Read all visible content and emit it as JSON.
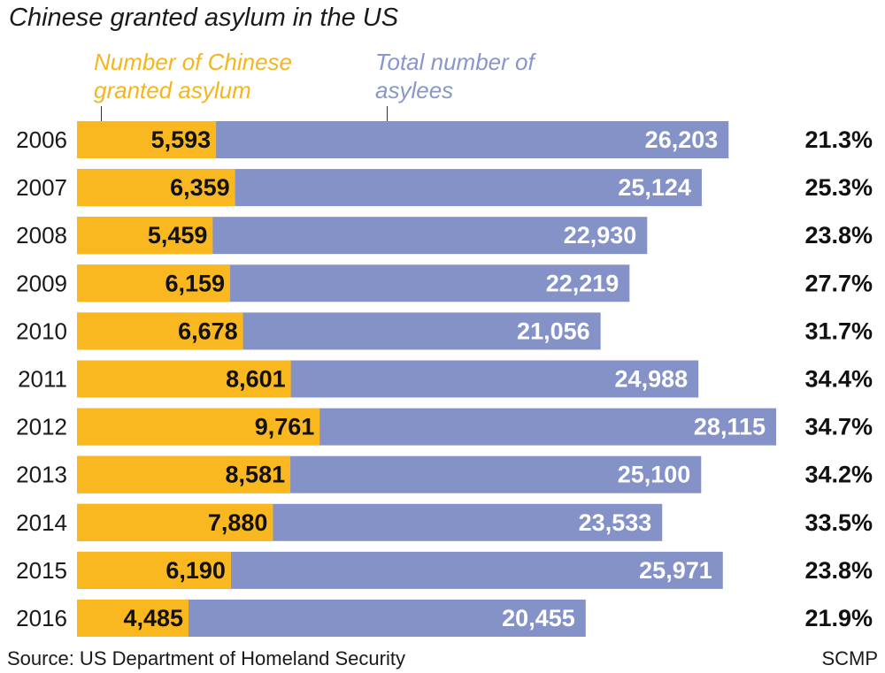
{
  "colors": {
    "chinese": "#f9b81f",
    "total": "#8492c8"
  },
  "chart_data": {
    "type": "bar",
    "title": "Chinese granted asylum in the US",
    "categories": [
      "2006",
      "2007",
      "2008",
      "2009",
      "2010",
      "2011",
      "2012",
      "2013",
      "2014",
      "2015",
      "2016"
    ],
    "series": [
      {
        "name": "Number of Chinese granted asylum",
        "values": [
          5593,
          6359,
          5459,
          6159,
          6678,
          8601,
          9761,
          8581,
          7880,
          6190,
          4485
        ],
        "labels": [
          "5,593",
          "6,359",
          "5,459",
          "6,159",
          "6,678",
          "8,601",
          "9,761",
          "8,581",
          "7,880",
          "6,190",
          "4,485"
        ]
      },
      {
        "name": "Total number of asylees",
        "values": [
          26203,
          25124,
          22930,
          22219,
          21056,
          24988,
          28115,
          25100,
          23533,
          25971,
          20455
        ],
        "labels": [
          "26,203",
          "25,124",
          "22,930",
          "22,219",
          "21,056",
          "24,988",
          "28,115",
          "25,100",
          "23,533",
          "25,971",
          "20,455"
        ]
      }
    ],
    "percent_labels": [
      "21.3%",
      "25.3%",
      "23.8%",
      "27.7%",
      "31.7%",
      "34.4%",
      "34.7%",
      "34.2%",
      "33.5%",
      "23.8%",
      "21.9%"
    ],
    "orientation": "horizontal",
    "xlim": [
      0,
      28115
    ]
  },
  "legend": {
    "chinese_label": "Number of Chinese granted asylum",
    "total_label": "Total number of asylees"
  },
  "source": "Source: US Department of Homeland Security",
  "credit": "SCMP"
}
